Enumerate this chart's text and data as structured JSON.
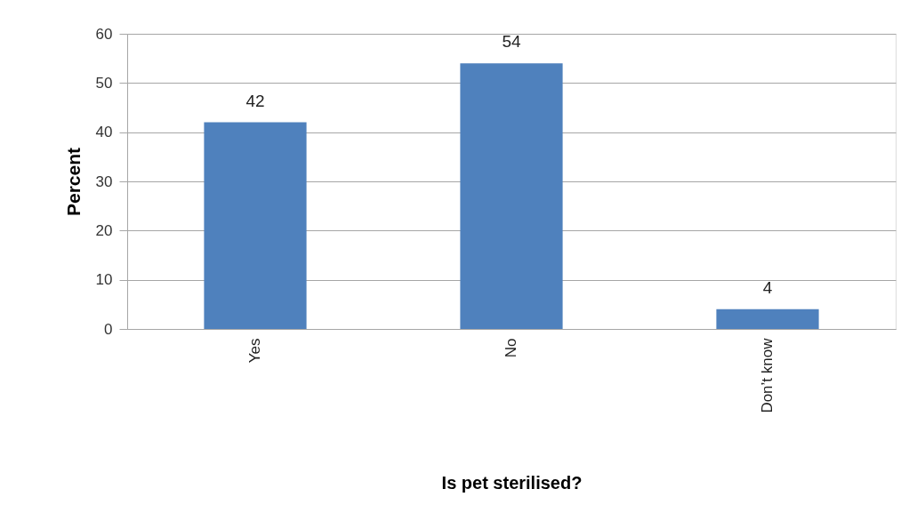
{
  "chart_data": {
    "type": "bar",
    "xlabel": "Is pet sterilised?",
    "ylabel": "Percent",
    "categories": [
      "Yes",
      "No",
      "Don’t know"
    ],
    "values": [
      42,
      54,
      4
    ],
    "color": "#4f81bd",
    "ylim": [
      0,
      60
    ],
    "yticks": [
      0,
      10,
      20,
      30,
      40,
      50,
      60
    ],
    "grid": "y",
    "data_labels": true
  }
}
